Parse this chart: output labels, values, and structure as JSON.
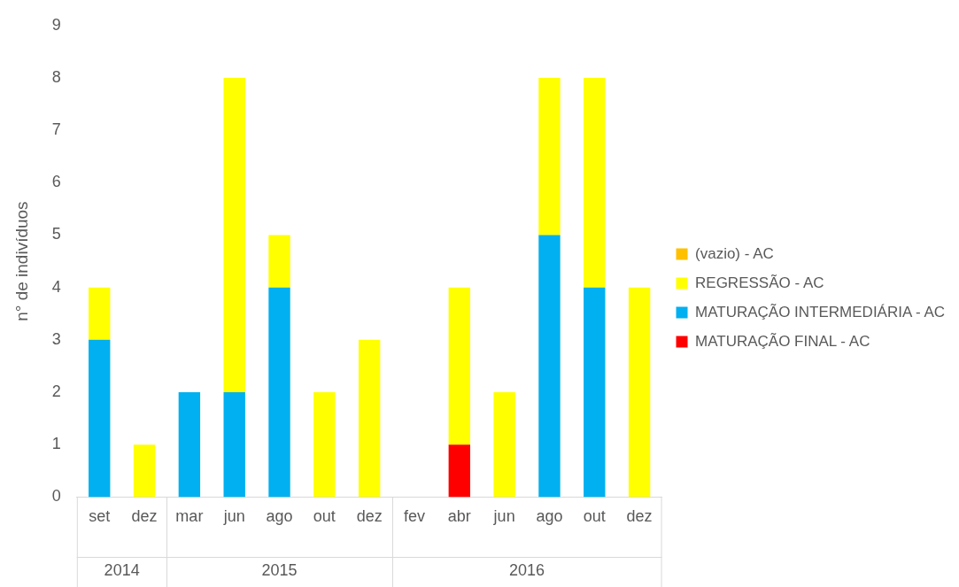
{
  "chart_data": {
    "type": "bar",
    "stacked": true,
    "ylabel": "n° de indivíduos",
    "categories": [
      "set",
      "dez",
      "mar",
      "jun",
      "ago",
      "out",
      "dez",
      "fev",
      "abr",
      "jun",
      "ago",
      "out",
      "dez"
    ],
    "series": [
      {
        "name": "MATURAÇÃO FINAL - AC",
        "color": "#ff0000",
        "values": [
          0,
          0,
          0,
          0,
          0,
          0,
          0,
          0,
          1,
          0,
          0,
          0,
          0
        ]
      },
      {
        "name": "MATURAÇÃO INTERMEDIÁRIA - AC",
        "color": "#00b0f0",
        "values": [
          3,
          0,
          2,
          2,
          4,
          0,
          0,
          0,
          0,
          0,
          5,
          4,
          0
        ]
      },
      {
        "name": "REGRESSÃO - AC",
        "color": "#ffff00",
        "values": [
          1,
          1,
          0,
          6,
          1,
          2,
          3,
          0,
          3,
          2,
          3,
          4,
          4
        ]
      },
      {
        "name": "(vazio) - AC",
        "color": "#ffc000",
        "values": [
          0,
          0,
          0,
          0,
          0,
          0,
          0,
          0,
          0,
          0,
          0,
          0,
          0
        ]
      }
    ],
    "ylim": [
      0,
      9
    ],
    "yticks": [
      0,
      1,
      2,
      3,
      4,
      5,
      6,
      7,
      8,
      9
    ],
    "grid": false,
    "legend": "right",
    "annotations": [
      "2014",
      "2015",
      "2016"
    ]
  }
}
